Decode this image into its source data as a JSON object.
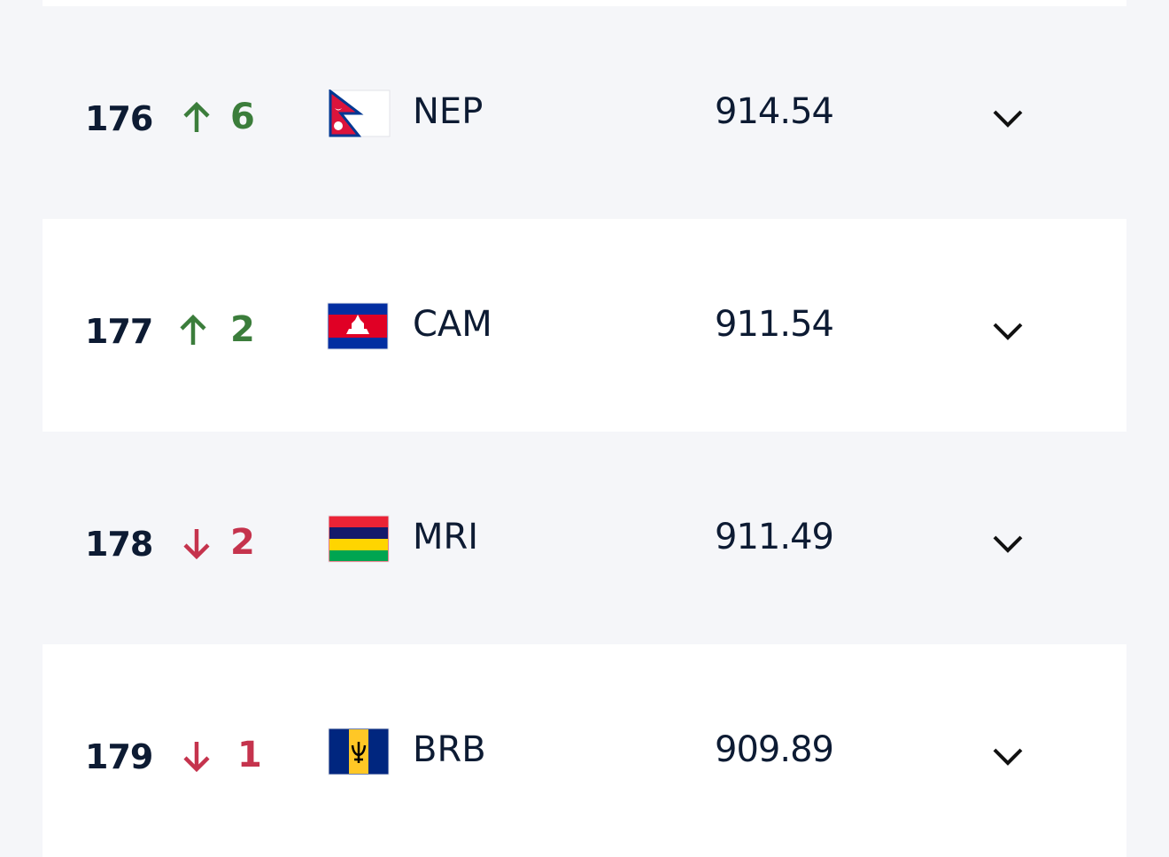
{
  "rows": [
    {
      "rank": 176,
      "change": 6,
      "code": "NEP",
      "points": 914.54
    },
    {
      "rank": 177,
      "change": 2,
      "code": "CAM",
      "points": 911.54
    },
    {
      "rank": 178,
      "change": 2,
      "code": "MRI",
      "points": 911.49
    },
    {
      "rank": 179,
      "change": 1,
      "code": "BRB",
      "points": 909.89
    }
  ]
}
